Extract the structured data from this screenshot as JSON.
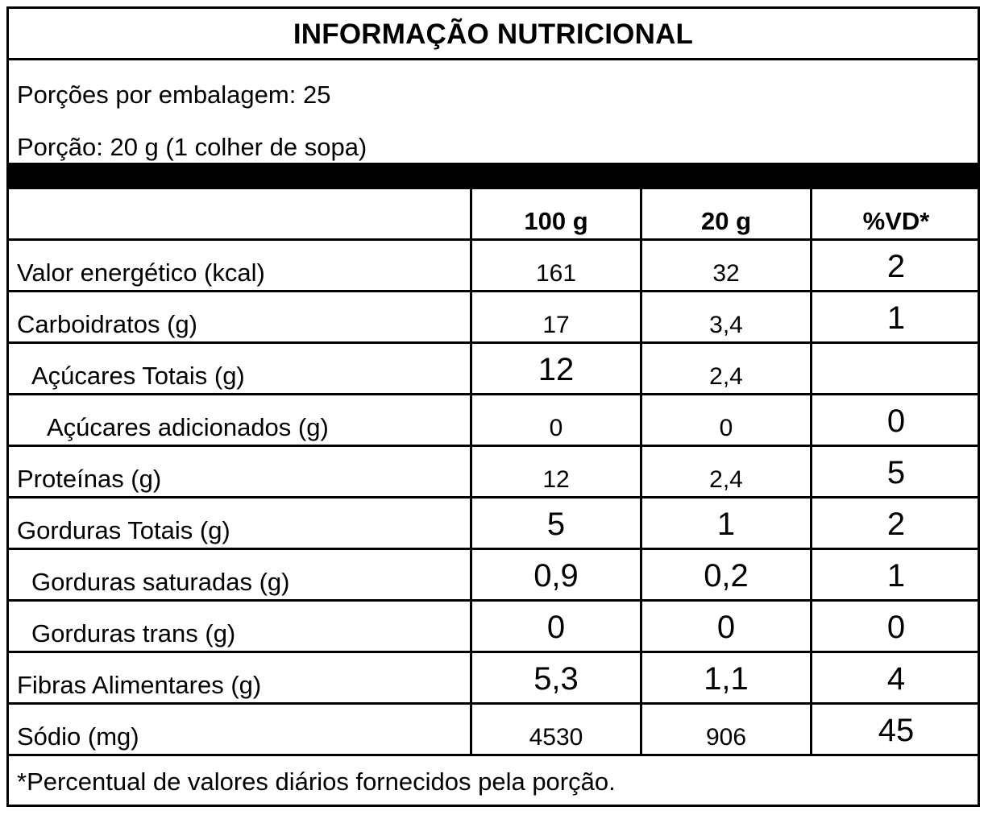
{
  "title": "INFORMAÇÃO NUTRICIONAL",
  "servings_per_package": "Porções por embalagem: 25",
  "serving_size": "Porção: 20 g (1 colher de sopa)",
  "columns": [
    "",
    "100 g",
    "20 g",
    "%VD*"
  ],
  "rows": [
    {
      "name": "Valor energético (kcal)",
      "per100": "161",
      "perServing": "32",
      "dv": "2"
    },
    {
      "name": "Carboidratos (g)",
      "per100": "17",
      "perServing": "3,4",
      "dv": "1"
    },
    {
      "name": "Açúcares Totais (g)",
      "per100": "12",
      "perServing": "2,4",
      "dv": ""
    },
    {
      "name": "Açúcares adicionados (g)",
      "per100": "0",
      "perServing": "0",
      "dv": "0"
    },
    {
      "name": "Proteínas (g)",
      "per100": "12",
      "perServing": "2,4",
      "dv": "5"
    },
    {
      "name": "Gorduras Totais (g)",
      "per100": "5",
      "perServing": "1",
      "dv": "2"
    },
    {
      "name": "Gorduras saturadas (g)",
      "per100": "0,9",
      "perServing": "0,2",
      "dv": "1"
    },
    {
      "name": "Gorduras trans (g)",
      "per100": "0",
      "perServing": "0",
      "dv": "0"
    },
    {
      "name": "Fibras Alimentares (g)",
      "per100": "5,3",
      "perServing": "1,1",
      "dv": "4"
    },
    {
      "name": "Sódio (mg)",
      "per100": "4530",
      "perServing": "906",
      "dv": "45"
    }
  ],
  "footnote": "*Percentual de valores diários fornecidos pela porção."
}
